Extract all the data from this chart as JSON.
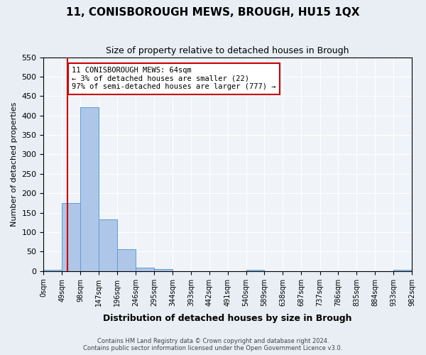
{
  "title": "11, CONISBOROUGH MEWS, BROUGH, HU15 1QX",
  "subtitle": "Size of property relative to detached houses in Brough",
  "xlabel": "Distribution of detached houses by size in Brough",
  "ylabel": "Number of detached properties",
  "footer_line1": "Contains HM Land Registry data © Crown copyright and database right 2024.",
  "footer_line2": "Contains public sector information licensed under the Open Government Licence v3.0.",
  "bin_labels": [
    "0sqm",
    "49sqm",
    "98sqm",
    "147sqm",
    "196sqm",
    "246sqm",
    "295sqm",
    "344sqm",
    "393sqm",
    "442sqm",
    "491sqm",
    "540sqm",
    "589sqm",
    "638sqm",
    "687sqm",
    "737sqm",
    "786sqm",
    "835sqm",
    "884sqm",
    "933sqm",
    "982sqm"
  ],
  "bar_heights": [
    3,
    175,
    422,
    132,
    57,
    8,
    5,
    0,
    0,
    0,
    0,
    3,
    0,
    0,
    0,
    0,
    0,
    0,
    0,
    3,
    0
  ],
  "bar_color": "#aec6e8",
  "bar_edge_color": "#5a9fd4",
  "property_line_x": 64,
  "property_line_color": "#cc0000",
  "annotation_text": "11 CONISBOROUGH MEWS: 64sqm\n← 3% of detached houses are smaller (22)\n97% of semi-detached houses are larger (777) →",
  "annotation_box_color": "#ffffff",
  "annotation_box_edge_color": "#cc0000",
  "ylim": [
    0,
    550
  ],
  "yticks": [
    0,
    50,
    100,
    150,
    200,
    250,
    300,
    350,
    400,
    450,
    500,
    550
  ],
  "bin_edges": [
    0,
    49,
    98,
    147,
    196,
    246,
    295,
    344,
    393,
    442,
    491,
    540,
    589,
    638,
    687,
    737,
    786,
    835,
    884,
    933,
    982
  ],
  "background_color": "#e8eef4",
  "plot_bg_color": "#f0f4f8"
}
